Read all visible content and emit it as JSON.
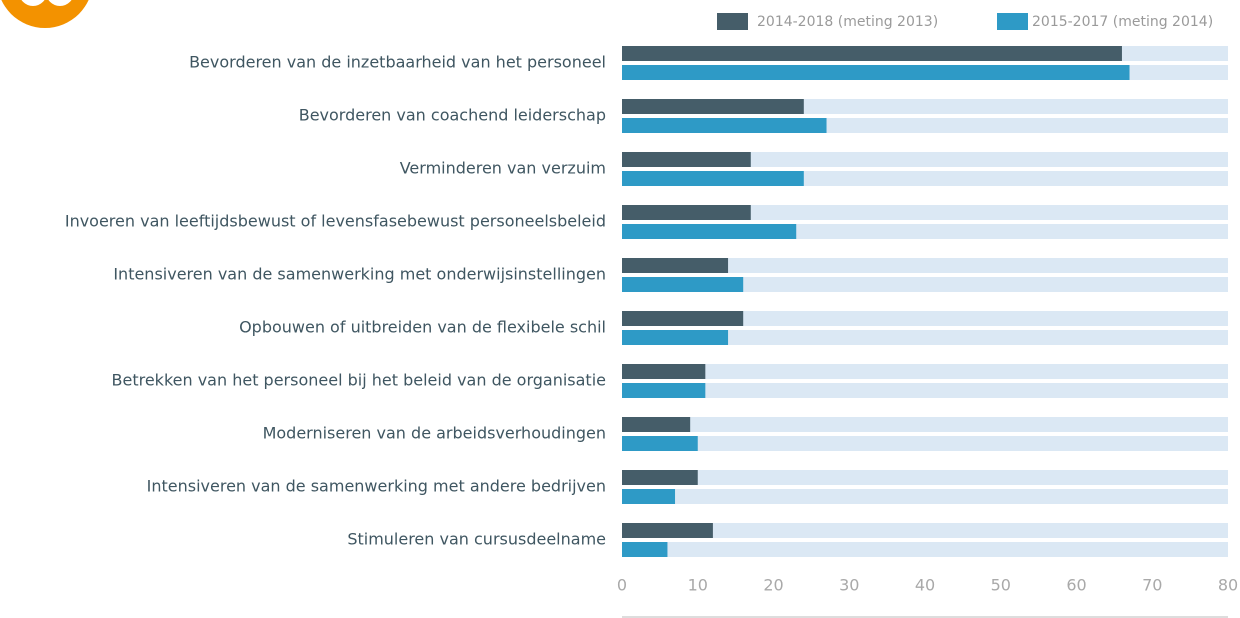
{
  "chart_data": {
    "type": "barh",
    "categories": [
      "Bevorderen van de inzetbaarheid van het personeel",
      "Bevorderen van coachend leiderschap",
      "Verminderen van verzuim",
      "Invoeren van leeftijdsbewust of levensfasebewust personeelsbeleid",
      "Intensiveren van de samenwerking met onderwijsinstellingen",
      "Opbouwen of uitbreiden van de flexibele schil",
      "Betrekken van het personeel bij het beleid van de organisatie",
      "Moderniseren van de arbeidsverhoudingen",
      "Intensiveren van de samenwerking met andere bedrijven",
      "Stimuleren van cursusdeelname"
    ],
    "series": [
      {
        "name": "2014-2018 (meting 2013)",
        "color": "#455d69",
        "values": [
          66,
          24,
          17,
          17,
          14,
          16,
          11,
          9,
          10,
          12
        ]
      },
      {
        "name": "2015-2017 (meting 2014)",
        "color": "#2e9ac6",
        "values": [
          67,
          27,
          24,
          23,
          16,
          14,
          11,
          10,
          7,
          6
        ]
      }
    ],
    "xlim": [
      0,
      80
    ],
    "xticks": [
      0,
      10,
      20,
      30,
      40,
      50,
      60,
      70,
      80
    ],
    "track_color": "#dbe8f4",
    "legend": "top-right"
  }
}
